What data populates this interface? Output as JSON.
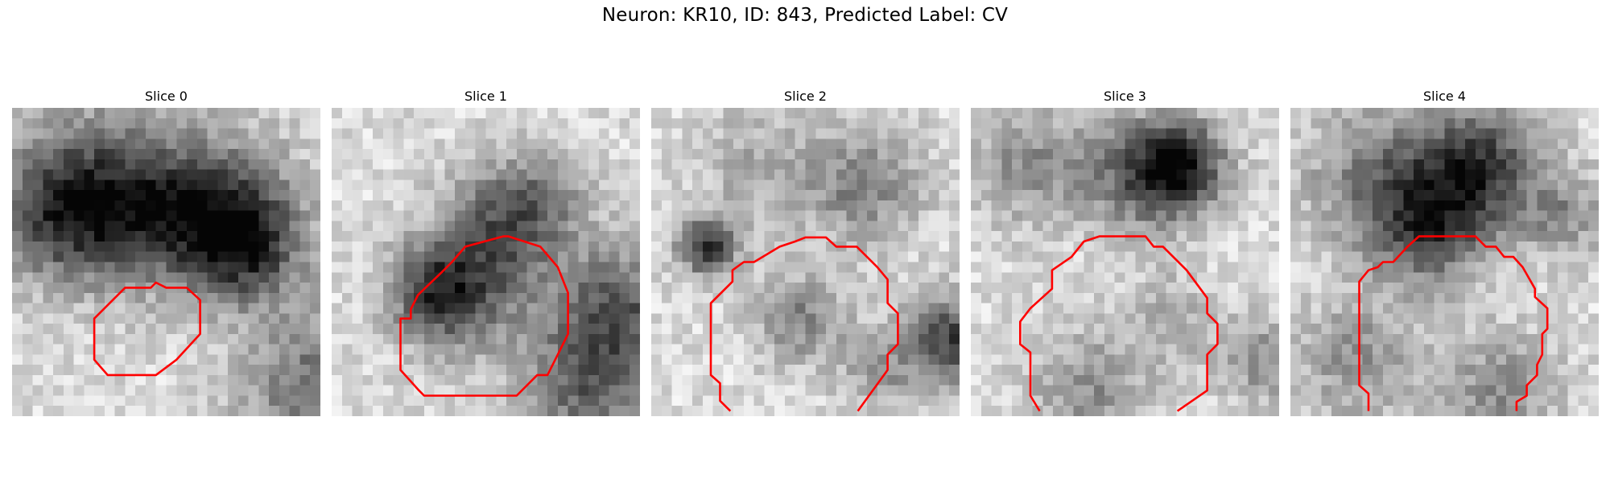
{
  "figure": {
    "title": "Neuron: KR10, ID: 843, Predicted Label: CV"
  },
  "panels": [
    {
      "title": "Slice 0"
    },
    {
      "title": "Slice 1"
    },
    {
      "title": "Slice 2"
    },
    {
      "title": "Slice 3"
    },
    {
      "title": "Slice 4"
    }
  ],
  "style": {
    "contour_color": "#ff0000",
    "colormap": "grayscale"
  }
}
